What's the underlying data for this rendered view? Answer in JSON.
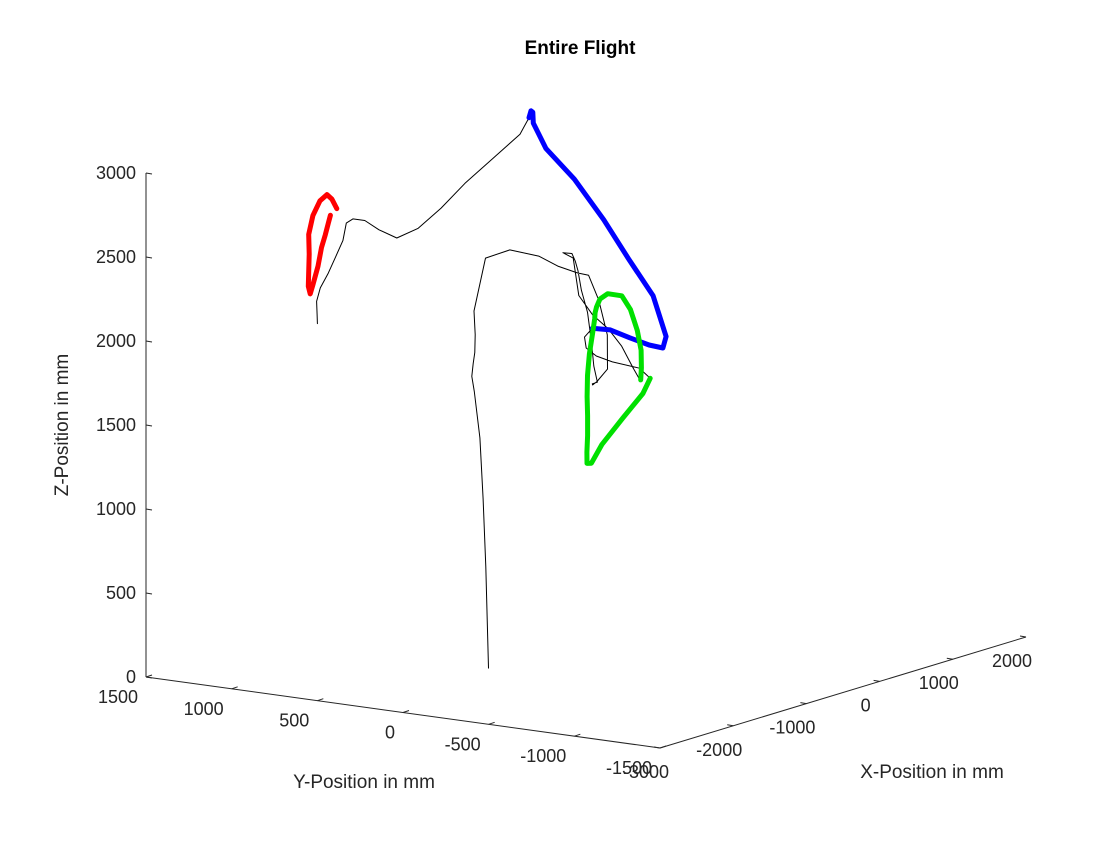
{
  "chart_data": {
    "type": "line",
    "projection": "3d",
    "title": "Entire Flight",
    "xlabel": "X-Position in mm",
    "ylabel": "Y-Position in mm",
    "zlabel": "Z-Position in mm",
    "xlim": [
      -3000,
      2000
    ],
    "ylim": [
      -1500,
      1500
    ],
    "zlim": [
      0,
      3000
    ],
    "x_ticks": [
      "-3000",
      "-2000",
      "-1000",
      "0",
      "1000",
      "2000"
    ],
    "y_ticks": [
      "1500",
      "1000",
      "500",
      "0",
      "-500",
      "-1000",
      "-1500"
    ],
    "z_ticks": [
      "0",
      "500",
      "1000",
      "1500",
      "2000",
      "2500",
      "3000"
    ],
    "grid": false,
    "legend": "none",
    "series": [
      {
        "role": "full trajectory",
        "color": "#000000",
        "x": [
          -2300,
          -2290,
          -2280,
          -2230,
          -2120,
          -1920,
          -1620,
          -1270,
          -1030,
          -930,
          -960,
          -1120,
          -1240,
          -1260,
          -1180,
          -1050,
          -840,
          -630,
          -440,
          -350,
          -270,
          -180,
          -110,
          -300,
          -380,
          -480,
          -610,
          -750,
          -880,
          -1020,
          -1190,
          -1260,
          -1300,
          -1160,
          -900,
          -600,
          -300,
          -20,
          200,
          420,
          650,
          880,
          1090,
          1160,
          1060,
          860,
          650,
          420,
          180,
          -80,
          -360,
          -620,
          -860,
          -1040,
          -1180,
          -1330,
          -1470,
          -1550,
          -1500,
          -1260,
          -940,
          -700,
          -590,
          -560,
          -500,
          -450,
          -380,
          -180,
          160,
          520,
          900,
          1230,
          1390,
          1400,
          1250,
          1100,
          980,
          920,
          980,
          1160,
          1300,
          1390,
          1360,
          1100,
          750,
          400,
          40,
          -300,
          -590,
          -830,
          -1040,
          -1200,
          -1340,
          -1510,
          -1680,
          -1860,
          -1980,
          -2020,
          -2040
        ],
        "y": [
          -200,
          -180,
          -160,
          -120,
          -40,
          60,
          180,
          320,
          420,
          470,
          390,
          180,
          -40,
          -160,
          -240,
          -250,
          -220,
          -180,
          -100,
          0,
          60,
          100,
          100,
          40,
          20,
          0,
          -20,
          -60,
          -100,
          -140,
          -160,
          -250,
          -300,
          -320,
          -300,
          -250,
          -190,
          -110,
          -20,
          70,
          170,
          290,
          420,
          500,
          540,
          500,
          430,
          340,
          240,
          140,
          40,
          -60,
          -160,
          -240,
          -300,
          -360,
          -420,
          -480,
          -520,
          -540,
          -520,
          -460,
          -350,
          -180,
          -60,
          20,
          60,
          100,
          140,
          180,
          230,
          290,
          340,
          420,
          500,
          580,
          700,
          840,
          940,
          1020,
          1090,
          1140,
          1180,
          1230,
          1240,
          1230,
          1210,
          1190,
          1170,
          1150,
          1130,
          1100,
          1060,
          1030,
          1000,
          970,
          940,
          920,
          910
        ],
        "z": [
          200,
          800,
          1200,
          1550,
          1800,
          1850,
          1870,
          1870,
          1930,
          2050,
          2380,
          2480,
          2490,
          2450,
          2410,
          2380,
          2200,
          1960,
          1720,
          1620,
          1580,
          1570,
          1570,
          1700,
          1860,
          2050,
          2200,
          2340,
          2420,
          2490,
          2520,
          2510,
          2300,
          2170,
          2050,
          1900,
          1720,
          1600,
          1560,
          1590,
          1650,
          1720,
          1800,
          1860,
          1880,
          1880,
          1870,
          1880,
          1890,
          1860,
          1780,
          1700,
          1620,
          1540,
          1450,
          1380,
          1340,
          1360,
          1470,
          1600,
          1700,
          1750,
          1780,
          1790,
          1800,
          1830,
          1880,
          1900,
          1840,
          1740,
          1640,
          1570,
          1610,
          1840,
          2070,
          2310,
          2550,
          2720,
          2850,
          2880,
          2860,
          2800,
          2700,
          2580,
          2480,
          2380,
          2310,
          2300,
          2390,
          2480,
          2520,
          2520,
          2440,
          2370,
          2300,
          2240,
          2180,
          2110,
          2060
        ]
      },
      {
        "role": "highlighted segment",
        "color": "#0000ff",
        "x": [
          -180,
          160,
          520,
          900,
          1230,
          1390,
          1400,
          1250,
          1100,
          980,
          920,
          980,
          1160,
          1300,
          1390
        ],
        "y": [
          100,
          140,
          180,
          230,
          290,
          340,
          420,
          500,
          580,
          700,
          840,
          940,
          1020,
          1090,
          1140
        ],
        "z": [
          1900,
          1840,
          1740,
          1640,
          1570,
          1610,
          1840,
          2070,
          2310,
          2550,
          2720,
          2850,
          2880,
          2860,
          2800
        ]
      },
      {
        "role": "highlighted segment",
        "color": "#00e000",
        "x": [
          200,
          420,
          650,
          880,
          1090,
          1160,
          1060,
          860,
          650,
          420,
          180,
          -80,
          -360,
          -620,
          -860,
          -1040,
          -1180,
          -1330,
          -1470,
          -1550,
          -1500,
          -1260,
          -940,
          -700
        ],
        "y": [
          -20,
          70,
          170,
          290,
          420,
          500,
          540,
          500,
          430,
          340,
          240,
          140,
          40,
          -60,
          -160,
          -240,
          -300,
          -360,
          -420,
          -480,
          -520,
          -540,
          -520,
          -460
        ],
        "z": [
          1560,
          1590,
          1650,
          1720,
          1800,
          1860,
          1880,
          1880,
          1870,
          1880,
          1890,
          1860,
          1780,
          1700,
          1620,
          1540,
          1450,
          1380,
          1340,
          1360,
          1470,
          1600,
          1700,
          1750
        ]
      },
      {
        "role": "highlighted segment",
        "color": "#ff0000",
        "x": [
          -1260,
          -1350,
          -1440,
          -1560,
          -1680,
          -1760,
          -1800,
          -1830,
          -1860,
          -1880,
          -1870,
          -1820,
          -1750,
          -1650,
          -1540,
          -1440
        ],
        "y": [
          1130,
          1120,
          1110,
          1100,
          1090,
          1080,
          1060,
          1050,
          1040,
          1020,
          1010,
          1000,
          1010,
          1030,
          1060,
          1090
        ],
        "z": [
          2610,
          2680,
          2720,
          2700,
          2630,
          2530,
          2420,
          2320,
          2240,
          2200,
          2250,
          2360,
          2460,
          2520,
          2570,
          2600
        ]
      }
    ]
  }
}
